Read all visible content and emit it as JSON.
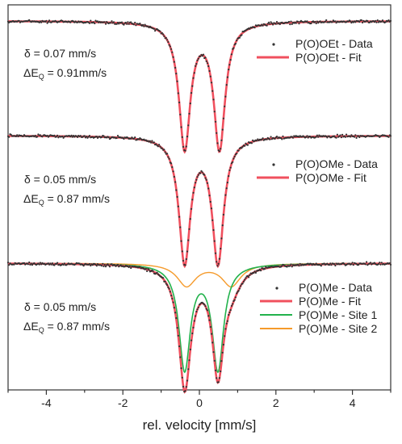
{
  "chart_data": {
    "type": "line",
    "xlabel": "rel. velocity [mm/s]",
    "xlim": [
      -5,
      5
    ],
    "xticks": [
      -4,
      -2,
      0,
      2,
      4
    ],
    "grid": false,
    "colors": {
      "fit": "#f0505e",
      "data": "#333333",
      "site1": "#22b24c",
      "site2": "#f59a2a"
    },
    "panels": [
      {
        "id": "top",
        "delta_text": "δ = 0.07 mm/s",
        "dq_prefix": "ΔE",
        "dq_sub": "Q",
        "dq_value": " = 0.91mm/s",
        "center": 0.07,
        "quad": 0.91,
        "fwhm": 0.36,
        "depth": 0.55,
        "series": [
          {
            "kind": "data",
            "name": "P(O)OEt - Data"
          },
          {
            "kind": "fit",
            "name": "P(O)OEt - Fit"
          }
        ]
      },
      {
        "id": "middle",
        "delta_text": "δ = 0.05 mm/s",
        "dq_prefix": "ΔE",
        "dq_sub": "Q",
        "dq_value": " = 0.87 mm/s",
        "center": 0.05,
        "quad": 0.87,
        "fwhm": 0.36,
        "depth": 0.53,
        "series": [
          {
            "kind": "data",
            "name": "P(O)OMe - Data"
          },
          {
            "kind": "fit",
            "name": "P(O)OMe - Fit"
          }
        ]
      },
      {
        "id": "bottom",
        "delta_text": "δ = 0.05 mm/s",
        "dq_prefix": "ΔE",
        "dq_sub": "Q",
        "dq_value": " = 0.87 mm/s",
        "center": 0.05,
        "quad": 0.87,
        "fwhm": 0.36,
        "depth": 0.55,
        "site2": {
          "center": 0.25,
          "quad": 1.17,
          "fwhm": 0.6,
          "depth": 0.1
        },
        "series": [
          {
            "kind": "data",
            "name": "P(O)Me - Data"
          },
          {
            "kind": "fit",
            "name": "P(O)Me - Fit"
          },
          {
            "kind": "site1",
            "name": "P(O)Me - Site 1"
          },
          {
            "kind": "site2",
            "name": "P(O)Me - Site 2"
          }
        ]
      }
    ]
  }
}
